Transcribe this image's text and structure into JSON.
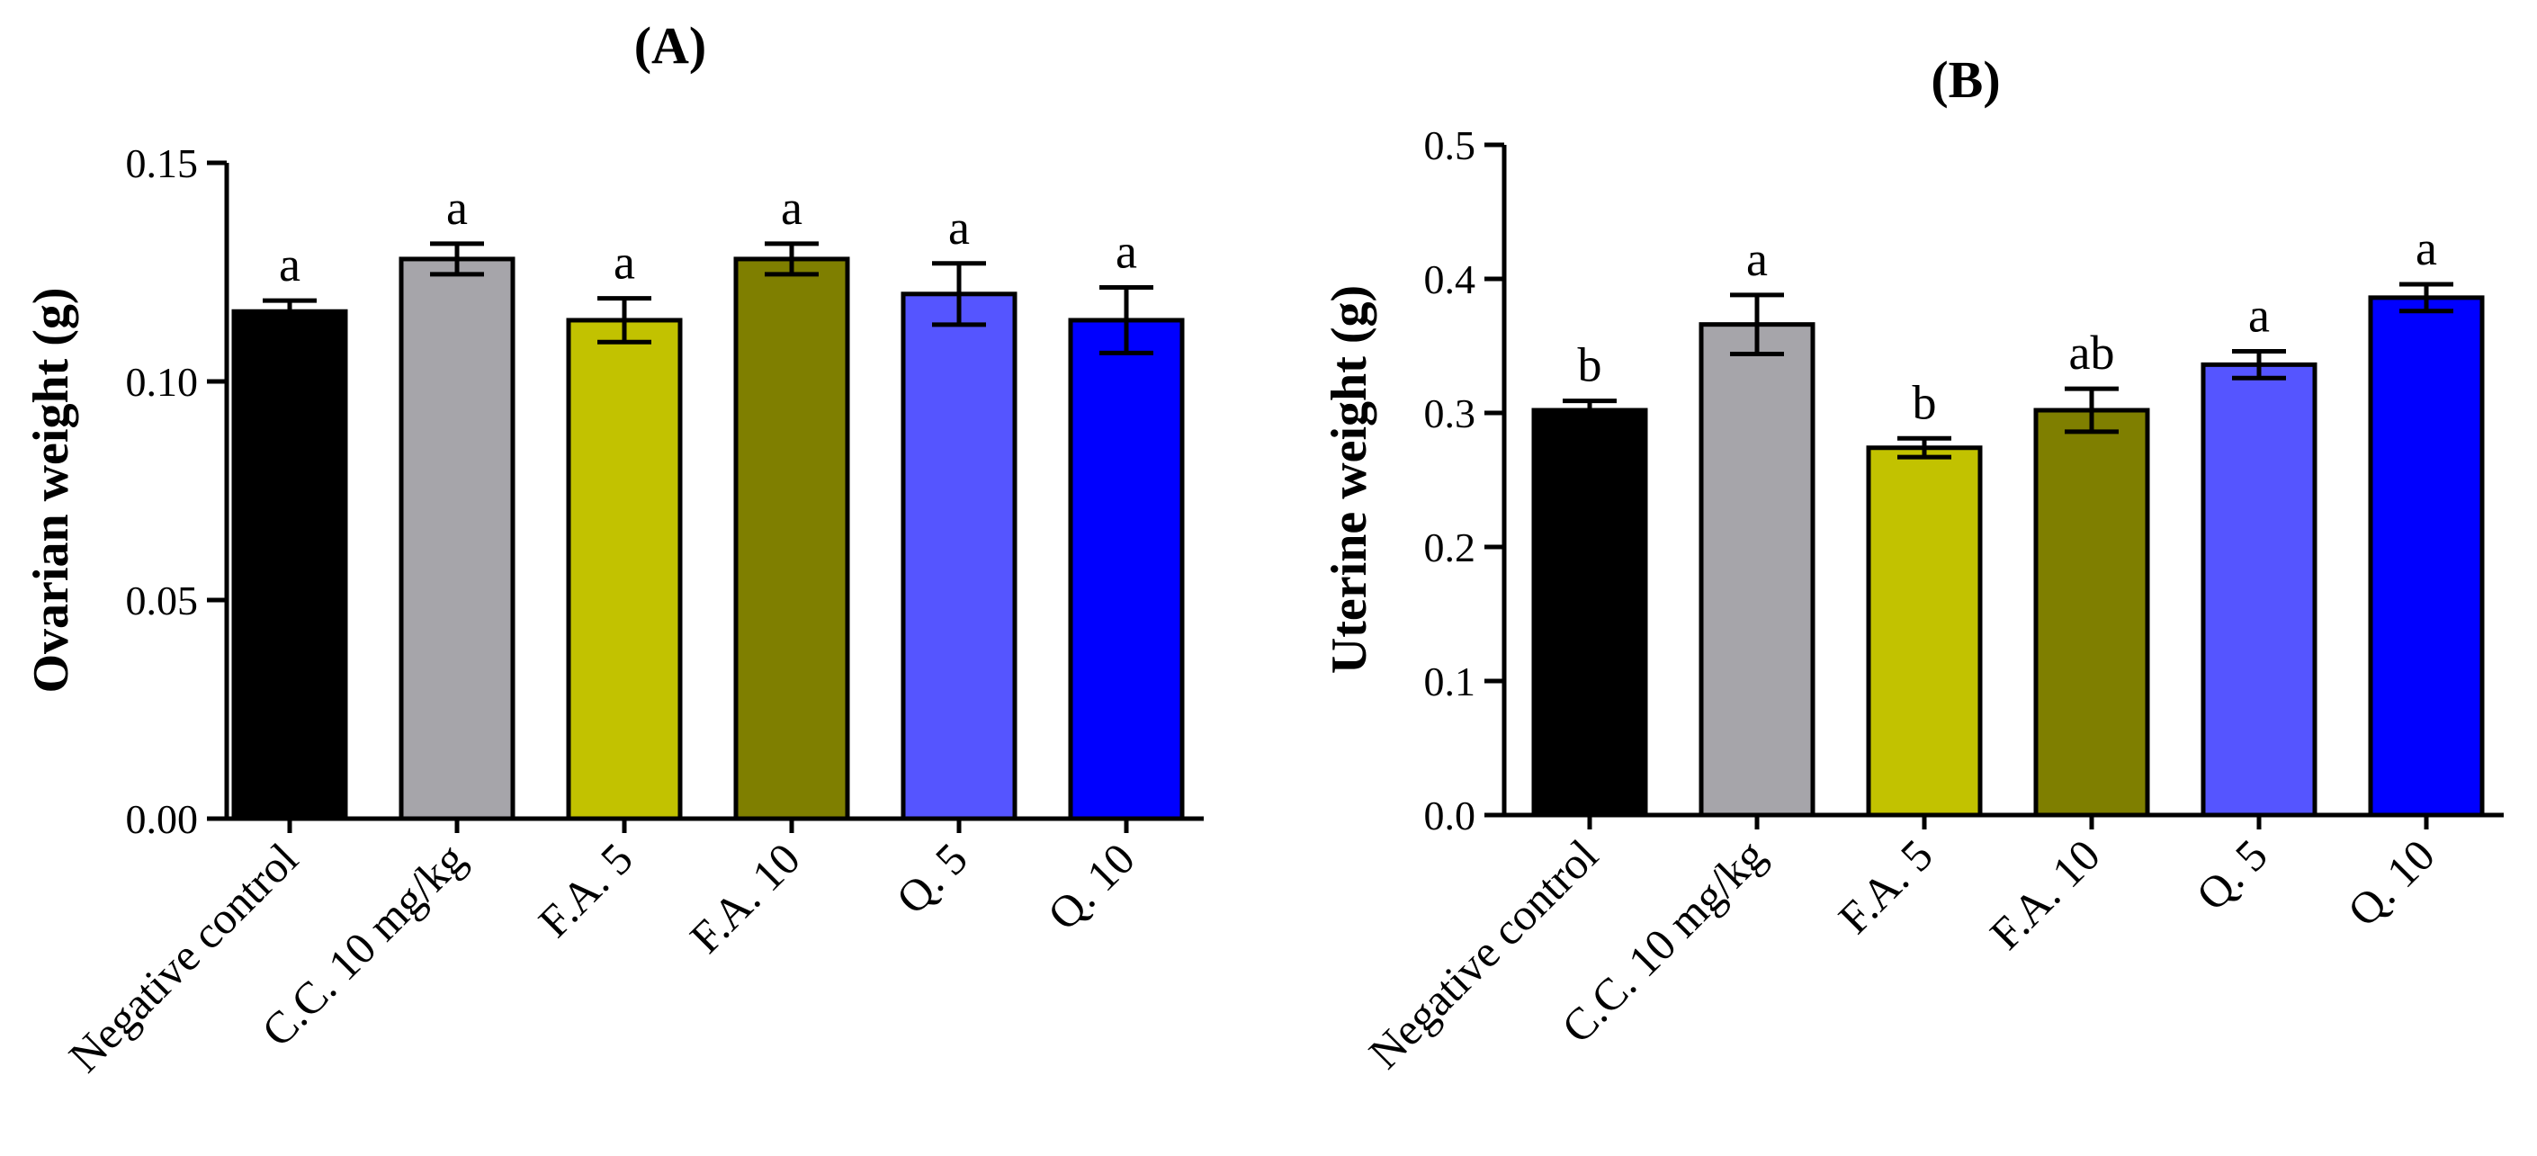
{
  "chart_data": [
    {
      "type": "bar",
      "panel_label": "(A)",
      "ylabel": "Ovarian weight (g)",
      "xlabel": "",
      "ylim": [
        0,
        0.15
      ],
      "yticks": [
        0.0,
        0.05,
        0.1,
        0.15
      ],
      "ytick_labels": [
        "0.00",
        "0.05",
        "0.10",
        "0.15"
      ],
      "categories": [
        "Negative control",
        "C.C. 10 mg/kg",
        "F.A. 5",
        "F.A. 10",
        "Q. 5",
        "Q. 10"
      ],
      "values": [
        0.116,
        0.128,
        0.114,
        0.128,
        0.12,
        0.114
      ],
      "errors": [
        0.0025,
        0.0035,
        0.005,
        0.0035,
        0.007,
        0.0075
      ],
      "significance": [
        "a",
        "a",
        "a",
        "a",
        "a",
        "a"
      ],
      "colors": [
        "#000000",
        "#a6a5aa",
        "#c2c200",
        "#7f7f00",
        "#5555ff",
        "#0000ff"
      ]
    },
    {
      "type": "bar",
      "panel_label": "(B)",
      "ylabel": "Uterine weight (g)",
      "xlabel": "",
      "ylim": [
        0,
        0.5
      ],
      "yticks": [
        0.0,
        0.1,
        0.2,
        0.3,
        0.4,
        0.5
      ],
      "ytick_labels": [
        "0.0",
        "0.1",
        "0.2",
        "0.3",
        "0.4",
        "0.5"
      ],
      "categories": [
        "Negative control",
        "C.C. 10 mg/kg",
        "F.A. 5",
        "F.A. 10",
        "Q. 5",
        "Q. 10"
      ],
      "values": [
        0.302,
        0.366,
        0.274,
        0.302,
        0.336,
        0.386
      ],
      "errors": [
        0.007,
        0.022,
        0.007,
        0.016,
        0.01,
        0.01
      ],
      "significance": [
        "b",
        "a",
        "b",
        "ab",
        "a",
        "a"
      ],
      "colors": [
        "#000000",
        "#a6a5aa",
        "#c2c200",
        "#7f7f00",
        "#5555ff",
        "#0000ff"
      ]
    }
  ]
}
